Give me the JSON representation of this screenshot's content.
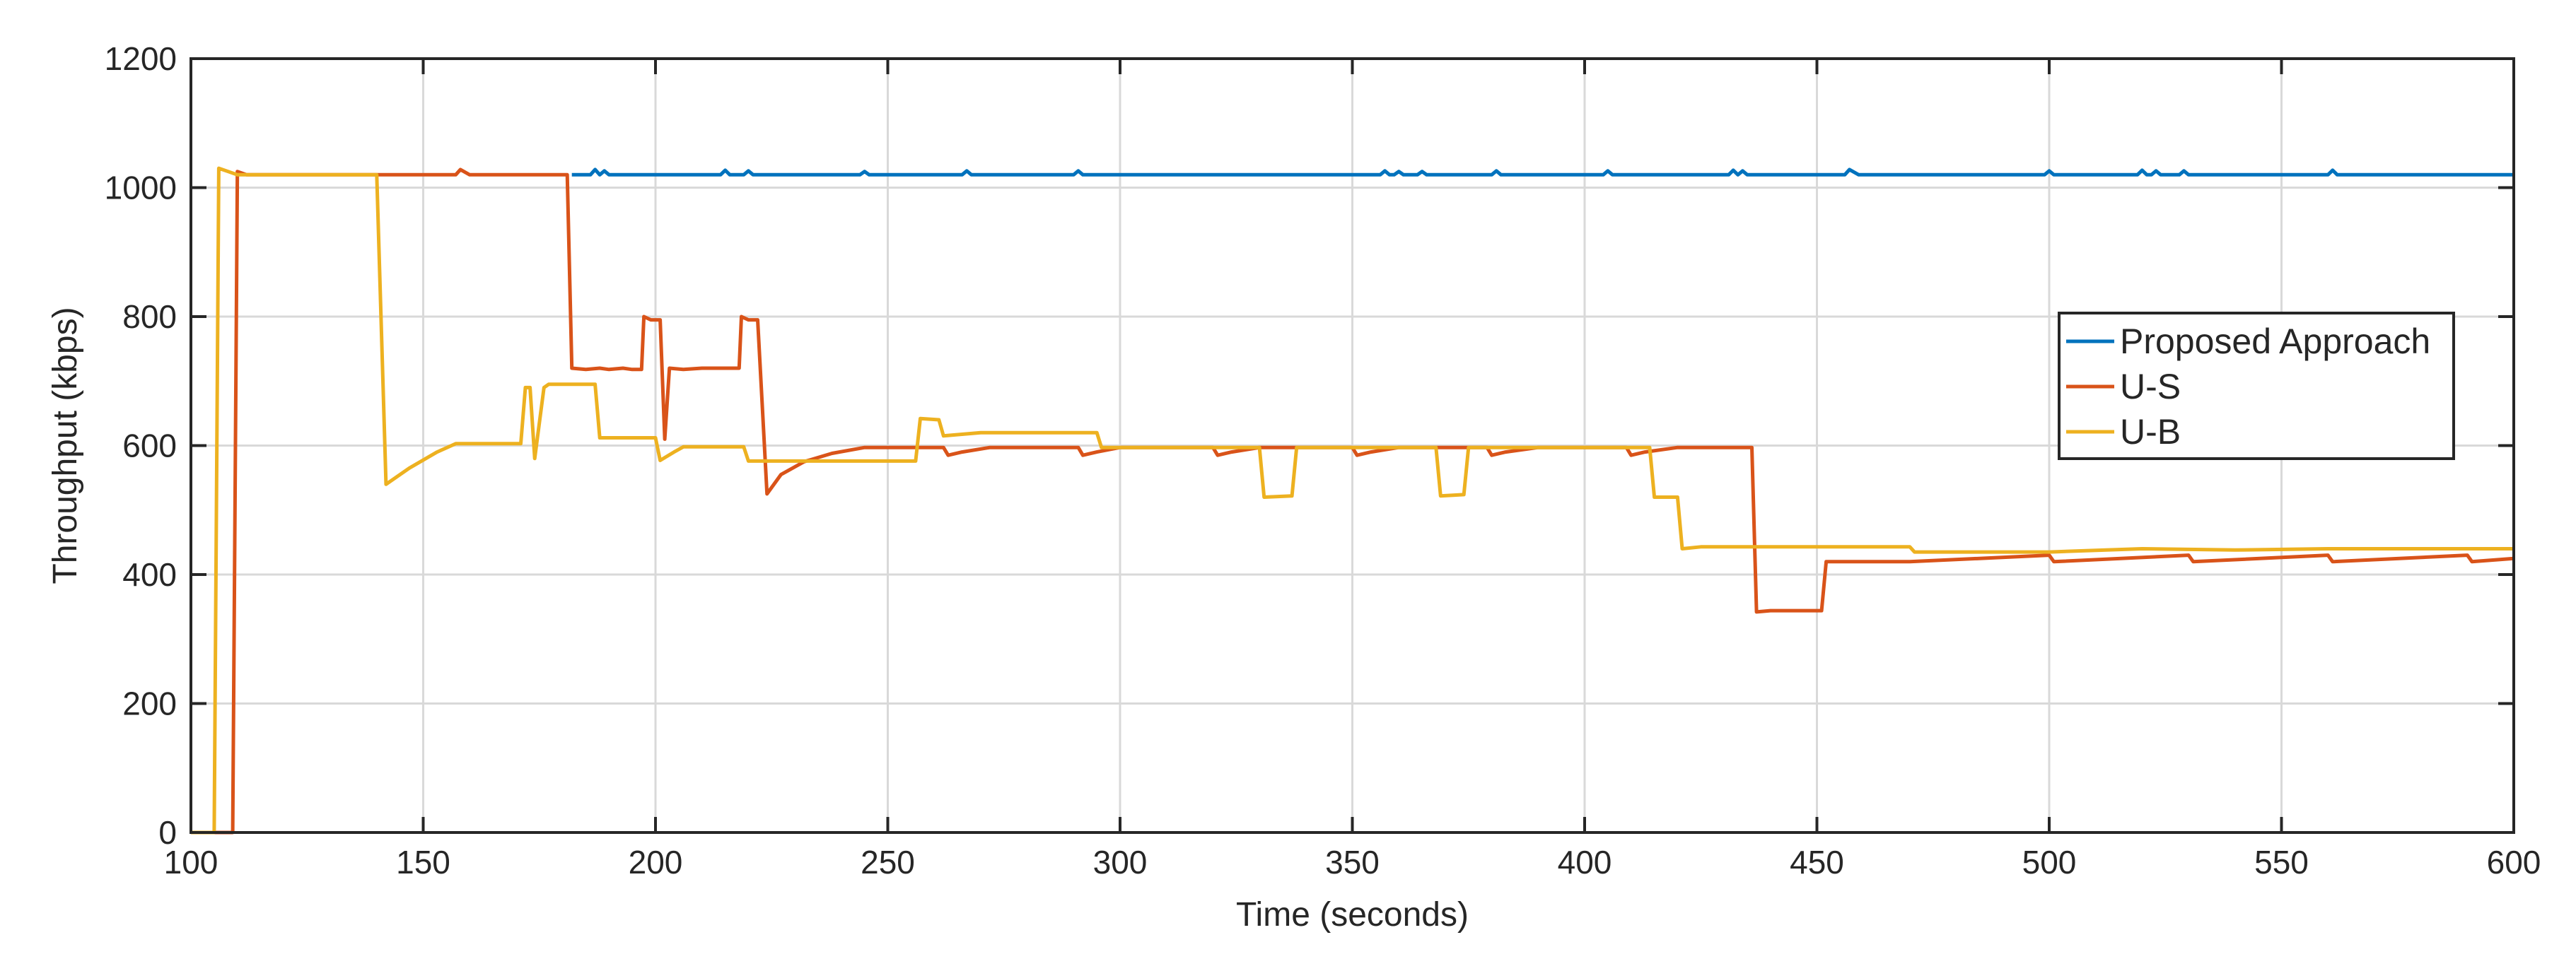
{
  "chart_data": {
    "type": "line",
    "xlabel": "Time (seconds)",
    "ylabel": "Throughput (kbps)",
    "xlim": [
      100,
      600
    ],
    "ylim": [
      0,
      1200
    ],
    "x_ticks": [
      100,
      150,
      200,
      250,
      300,
      350,
      400,
      450,
      500,
      550,
      600
    ],
    "y_ticks": [
      0,
      200,
      400,
      600,
      800,
      1000,
      1200
    ],
    "x_tick_labels": [
      "100",
      "150",
      "200",
      "250",
      "300",
      "350",
      "400",
      "450",
      "500",
      "550",
      "600"
    ],
    "y_tick_labels": [
      "0",
      "200",
      "400",
      "600",
      "800",
      "1000",
      "1200"
    ],
    "grid": true,
    "legend_position": "right",
    "series": [
      {
        "name": "Proposed Approach",
        "color": "#0072BD",
        "points": [
          [
            182,
            1020
          ],
          [
            186,
            1020
          ],
          [
            187,
            1028
          ],
          [
            188,
            1020
          ],
          [
            189,
            1026
          ],
          [
            190,
            1020
          ],
          [
            214,
            1020
          ],
          [
            215,
            1027
          ],
          [
            216,
            1020
          ],
          [
            219,
            1020
          ],
          [
            220,
            1026
          ],
          [
            221,
            1020
          ],
          [
            244,
            1020
          ],
          [
            245,
            1025
          ],
          [
            246,
            1020
          ],
          [
            266,
            1020
          ],
          [
            267,
            1026
          ],
          [
            268,
            1020
          ],
          [
            290,
            1020
          ],
          [
            291,
            1026
          ],
          [
            292,
            1020
          ],
          [
            356,
            1020
          ],
          [
            357,
            1026
          ],
          [
            358,
            1020
          ],
          [
            359,
            1020
          ],
          [
            360,
            1025
          ],
          [
            361,
            1020
          ],
          [
            364,
            1020
          ],
          [
            365,
            1025
          ],
          [
            366,
            1020
          ],
          [
            380,
            1020
          ],
          [
            381,
            1026
          ],
          [
            382,
            1020
          ],
          [
            404,
            1020
          ],
          [
            405,
            1026
          ],
          [
            406,
            1020
          ],
          [
            431,
            1020
          ],
          [
            432,
            1027
          ],
          [
            433,
            1020
          ],
          [
            434,
            1026
          ],
          [
            435,
            1020
          ],
          [
            456,
            1020
          ],
          [
            457,
            1028
          ],
          [
            459,
            1020
          ],
          [
            499,
            1020
          ],
          [
            500,
            1026
          ],
          [
            501,
            1020
          ],
          [
            519,
            1020
          ],
          [
            520,
            1027
          ],
          [
            521,
            1020
          ],
          [
            522,
            1020
          ],
          [
            523,
            1026
          ],
          [
            524,
            1020
          ],
          [
            528,
            1020
          ],
          [
            529,
            1026
          ],
          [
            530,
            1020
          ],
          [
            560,
            1020
          ],
          [
            561,
            1027
          ],
          [
            562,
            1020
          ],
          [
            600,
            1020
          ]
        ]
      },
      {
        "name": "U-S",
        "color": "#D95319",
        "points": [
          [
            100,
            0
          ],
          [
            109,
            0
          ],
          [
            110,
            1025
          ],
          [
            112,
            1020
          ],
          [
            157,
            1020
          ],
          [
            158,
            1028
          ],
          [
            160,
            1020
          ],
          [
            181,
            1020
          ],
          [
            182,
            720
          ],
          [
            185,
            718
          ],
          [
            188,
            720
          ],
          [
            190,
            718
          ],
          [
            193,
            720
          ],
          [
            195,
            718
          ],
          [
            197,
            718
          ],
          [
            197.5,
            800
          ],
          [
            199,
            795
          ],
          [
            201,
            795
          ],
          [
            202,
            610
          ],
          [
            203,
            720
          ],
          [
            206,
            718
          ],
          [
            210,
            720
          ],
          [
            215,
            720
          ],
          [
            218,
            720
          ],
          [
            218.5,
            800
          ],
          [
            220,
            795
          ],
          [
            222,
            795
          ],
          [
            224,
            525
          ],
          [
            227,
            555
          ],
          [
            232,
            575
          ],
          [
            238,
            588
          ],
          [
            245,
            597
          ],
          [
            262,
            597
          ],
          [
            263,
            585
          ],
          [
            266,
            590
          ],
          [
            272,
            597
          ],
          [
            291,
            597
          ],
          [
            292,
            585
          ],
          [
            295,
            590
          ],
          [
            300,
            597
          ],
          [
            320,
            597
          ],
          [
            321,
            585
          ],
          [
            324,
            590
          ],
          [
            330,
            597
          ],
          [
            350,
            597
          ],
          [
            351,
            585
          ],
          [
            354,
            590
          ],
          [
            360,
            597
          ],
          [
            379,
            597
          ],
          [
            380,
            585
          ],
          [
            383,
            590
          ],
          [
            390,
            597
          ],
          [
            409,
            597
          ],
          [
            410,
            585
          ],
          [
            413,
            590
          ],
          [
            420,
            597
          ],
          [
            436,
            597
          ],
          [
            437,
            342
          ],
          [
            440,
            344
          ],
          [
            451,
            344
          ],
          [
            452,
            420
          ],
          [
            470,
            420
          ],
          [
            500,
            430
          ],
          [
            501,
            420
          ],
          [
            530,
            430
          ],
          [
            531,
            420
          ],
          [
            560,
            430
          ],
          [
            561,
            420
          ],
          [
            590,
            430
          ],
          [
            591,
            420
          ],
          [
            600,
            425
          ]
        ]
      },
      {
        "name": "U-B",
        "color": "#EDB120",
        "points": [
          [
            100,
            0
          ],
          [
            105,
            0
          ],
          [
            106,
            1030
          ],
          [
            108,
            1025
          ],
          [
            110,
            1020
          ],
          [
            140,
            1020
          ],
          [
            142,
            540
          ],
          [
            147,
            565
          ],
          [
            153,
            590
          ],
          [
            157,
            603
          ],
          [
            171,
            603
          ],
          [
            172,
            690
          ],
          [
            173,
            690
          ],
          [
            174,
            580
          ],
          [
            176,
            690
          ],
          [
            177,
            695
          ],
          [
            187,
            695
          ],
          [
            188,
            612
          ],
          [
            200,
            612
          ],
          [
            201,
            577
          ],
          [
            204,
            590
          ],
          [
            206,
            598
          ],
          [
            219,
            598
          ],
          [
            220,
            576
          ],
          [
            250,
            576
          ],
          [
            256,
            576
          ],
          [
            257,
            642
          ],
          [
            261,
            640
          ],
          [
            262,
            615
          ],
          [
            270,
            620
          ],
          [
            295,
            620
          ],
          [
            296,
            597
          ],
          [
            300,
            597
          ],
          [
            330,
            597
          ],
          [
            331,
            520
          ],
          [
            337,
            522
          ],
          [
            338,
            597
          ],
          [
            368,
            597
          ],
          [
            369,
            522
          ],
          [
            374,
            524
          ],
          [
            375,
            597
          ],
          [
            405,
            597
          ],
          [
            414,
            597
          ],
          [
            415,
            520
          ],
          [
            420,
            520
          ],
          [
            421,
            440
          ],
          [
            425,
            443
          ],
          [
            470,
            443
          ],
          [
            471,
            435
          ],
          [
            500,
            435
          ],
          [
            520,
            440
          ],
          [
            540,
            438
          ],
          [
            560,
            440
          ],
          [
            580,
            440
          ],
          [
            600,
            440
          ]
        ]
      }
    ]
  }
}
